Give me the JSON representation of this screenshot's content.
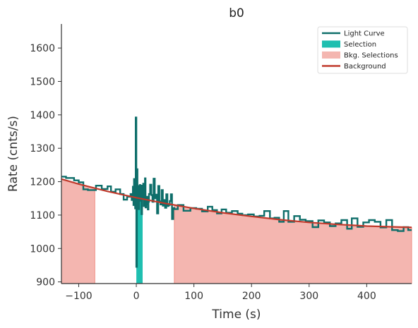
{
  "chart_data": {
    "type": "line",
    "title": "b0",
    "xlabel": "Time (s)",
    "ylabel": "Rate (cnts/s)",
    "xlim": [
      -130,
      478
    ],
    "ylim": [
      895,
      1672
    ],
    "x_ticks": [
      -100,
      0,
      100,
      200,
      300,
      400
    ],
    "y_ticks": [
      900,
      1000,
      1100,
      1200,
      1300,
      1400,
      1500,
      1600
    ],
    "x_tick_labels": [
      "−100",
      "0",
      "100",
      "200",
      "300",
      "400"
    ],
    "y_tick_labels": [
      "900",
      "1000",
      "1100",
      "1200",
      "1300",
      "1400",
      "1500",
      "1600"
    ],
    "grid": false,
    "legend_position": "top-right",
    "colors": {
      "light_curve": "#0e6e6a",
      "selection": "#1fbfb0",
      "bkg_selection_fill": "#f4b6b0",
      "bkg_selection_edge": "#ef8f86",
      "background": "#c0392b",
      "axis": "#333333"
    },
    "legend": [
      {
        "label": "Light Curve",
        "kind": "line",
        "color": "#0e6e6a"
      },
      {
        "label": "Selection",
        "kind": "patch",
        "color": "#1fbfb0"
      },
      {
        "label": "Bkg. Selections",
        "kind": "patch",
        "color": "#f4b6b0"
      },
      {
        "label": "Background",
        "kind": "line",
        "color": "#c0392b"
      }
    ],
    "selection": [
      0,
      11
    ],
    "bkg_selections": [
      [
        -130,
        -72
      ],
      [
        66,
        478
      ]
    ],
    "background": {
      "x": [
        -130,
        -100,
        -50,
        0,
        50,
        100,
        150,
        200,
        250,
        300,
        350,
        400,
        478
      ],
      "y": [
        1208,
        1193,
        1171,
        1152,
        1135,
        1120,
        1107,
        1096,
        1086,
        1078,
        1072,
        1067,
        1063
      ]
    },
    "light_curve": {
      "edges": [
        -130,
        -122,
        -108,
        -100,
        -92,
        -84,
        -70,
        -60,
        -58,
        -50,
        -44,
        -36,
        -28,
        -22,
        -16,
        -10,
        -8,
        -6,
        -5,
        -4,
        -3,
        -2,
        -1,
        0,
        1,
        2,
        3,
        4,
        5,
        6,
        7,
        8,
        9,
        10,
        11,
        12,
        13,
        14,
        15,
        16,
        17,
        18,
        19,
        20,
        21,
        22,
        24,
        26,
        28,
        30,
        32,
        34,
        36,
        38,
        40,
        42,
        44,
        46,
        48,
        50,
        52,
        54,
        56,
        58,
        60,
        62,
        64,
        66,
        72,
        82,
        94,
        104,
        114,
        124,
        132,
        140,
        148,
        156,
        166,
        176,
        184,
        194,
        204,
        214,
        222,
        232,
        240,
        248,
        256,
        264,
        274,
        284,
        294,
        306,
        316,
        326,
        336,
        346,
        356,
        366,
        374,
        384,
        394,
        404,
        414,
        424,
        434,
        444,
        454,
        464,
        472,
        478
      ],
      "rate": [
        1215,
        1211,
        1204,
        1198,
        1177,
        1175,
        1188,
        1178,
        1178,
        1186,
        1170,
        1177,
        1163,
        1146,
        1155,
        1163,
        1145,
        1185,
        1130,
        1208,
        1150,
        1120,
        1392,
        945,
        1237,
        1143,
        1187,
        1118,
        1155,
        1190,
        1143,
        1177,
        1103,
        1188,
        1148,
        1194,
        1127,
        1160,
        1210,
        1123,
        1132,
        1155,
        1145,
        1117,
        1140,
        1163,
        1191,
        1160,
        1140,
        1209,
        1150,
        1161,
        1105,
        1187,
        1141,
        1132,
        1175,
        1128,
        1145,
        1122,
        1162,
        1127,
        1130,
        1142,
        1162,
        1088,
        1121,
        1118,
        1130,
        1113,
        1121,
        1119,
        1111,
        1125,
        1115,
        1105,
        1117,
        1107,
        1112,
        1104,
        1100,
        1102,
        1096,
        1098,
        1112,
        1090,
        1092,
        1080,
        1112,
        1080,
        1097,
        1086,
        1082,
        1064,
        1084,
        1078,
        1067,
        1075,
        1085,
        1059,
        1090,
        1065,
        1078,
        1085,
        1080,
        1063,
        1085,
        1055,
        1052,
        1064,
        1055
      ]
    }
  }
}
